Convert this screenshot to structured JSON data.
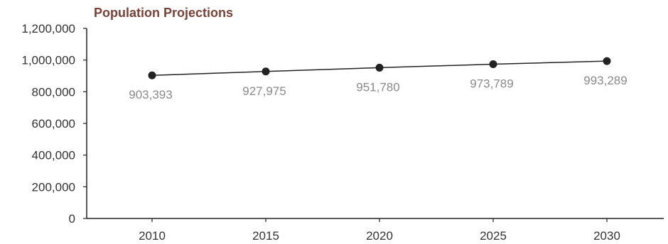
{
  "title": "Population Projections",
  "colors": {
    "title": "#7a4236",
    "line": "#222222",
    "marker": "#222222",
    "axis": "#222222",
    "data_label": "#8a8a8a"
  },
  "chart_data": {
    "type": "line",
    "title": "Population Projections",
    "xlabel": "",
    "ylabel": "",
    "categories": [
      "2010",
      "2015",
      "2020",
      "2025",
      "2030"
    ],
    "series": [
      {
        "values": [
          903393,
          927975,
          951780,
          973789,
          993289
        ]
      }
    ],
    "data_labels": [
      "903,393",
      "927,975",
      "951,780",
      "973,789",
      "993,289"
    ],
    "ylim": [
      0,
      1200000
    ],
    "yticks": [
      0,
      200000,
      400000,
      600000,
      800000,
      1000000,
      1200000
    ],
    "ytick_labels": [
      "0",
      "200,000",
      "400,000",
      "600,000",
      "800,000",
      "1,000,000",
      "1,200,000"
    ],
    "grid": false,
    "legend": "none"
  }
}
